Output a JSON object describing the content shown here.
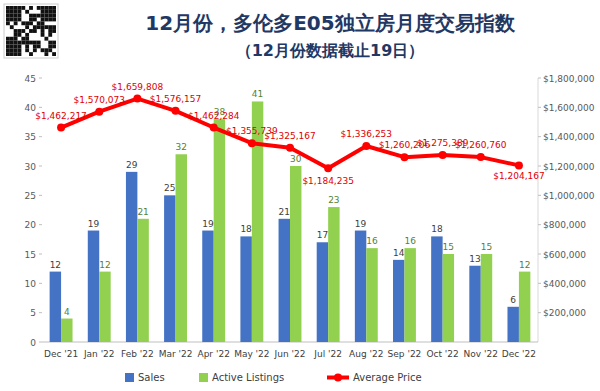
{
  "chart_data": {
    "type": "bar",
    "title": "12月份，多伦多E05独立房月度交易指数",
    "subtitle": "（12月份数据截止19日）",
    "categories": [
      "Dec '21",
      "Jan '22",
      "Feb '22",
      "Mar '22",
      "Apr '22",
      "May '22",
      "Jun '22",
      "Jul '22",
      "Aug '22",
      "Sep '22",
      "Oct '22",
      "Nov '22",
      "Dec '22"
    ],
    "series": [
      {
        "name": "Sales",
        "type": "bar",
        "color": "#4472c4",
        "values": [
          12,
          19,
          29,
          25,
          19,
          18,
          21,
          17,
          19,
          14,
          18,
          13,
          6
        ]
      },
      {
        "name": "Active Listings",
        "type": "bar",
        "color": "#92d050",
        "values": [
          4,
          12,
          21,
          32,
          38,
          41,
          30,
          23,
          16,
          16,
          15,
          15,
          12
        ]
      },
      {
        "name": "Average Price",
        "type": "line",
        "axis": "y2",
        "color": "#ff0000",
        "marker": "circle",
        "values": [
          1462217,
          1570073,
          1659808,
          1576157,
          1462284,
          1355739,
          1325167,
          1184235,
          1336253,
          1260206,
          1275389,
          1260760,
          1204167
        ],
        "value_labels": [
          "$1,462,217",
          "$1,570,073",
          "$1,659,808",
          "$1,576,157",
          "$1,462,284",
          "$1,355,739",
          "$1,325,167",
          "$1,184,235",
          "$1,336,253",
          "$1,260,206",
          "$1,275,389",
          "$1,260,760",
          "$1,204,167"
        ]
      }
    ],
    "ylim": [
      0,
      45
    ],
    "yticks": [
      0,
      5,
      10,
      15,
      20,
      25,
      30,
      35,
      40,
      45
    ],
    "y2lim": [
      0,
      1800000
    ],
    "y2ticks": [
      {
        "value": 200000,
        "label": "$200,000"
      },
      {
        "value": 400000,
        "label": "$400,000"
      },
      {
        "value": 600000,
        "label": "$600,000"
      },
      {
        "value": 800000,
        "label": "$800,000"
      },
      {
        "value": 1000000,
        "label": "$1,000,000"
      },
      {
        "value": 1200000,
        "label": "$1,200,000"
      },
      {
        "value": 1400000,
        "label": "$1,400,000"
      },
      {
        "value": 1600000,
        "label": "$1,600,000"
      },
      {
        "value": 1800000,
        "label": "$1,800,000"
      }
    ],
    "grid": false,
    "legend": "bottom",
    "data_labels": true
  }
}
